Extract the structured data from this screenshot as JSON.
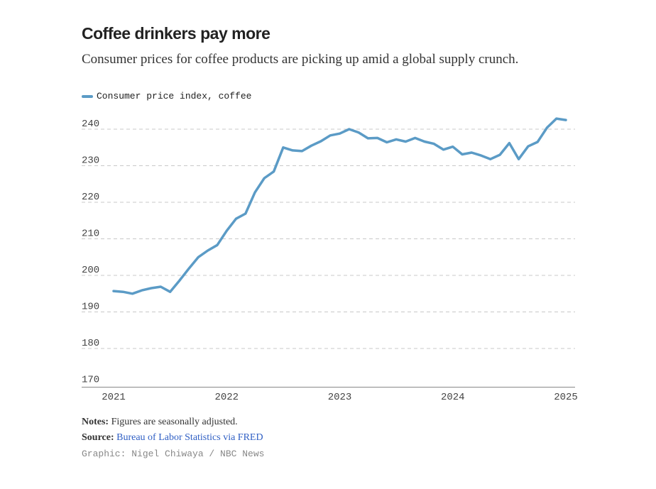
{
  "chart_data": {
    "type": "line",
    "title": "Coffee drinkers pay more",
    "subtitle": "Consumer prices for coffee products are picking up amid a global supply crunch.",
    "series": [
      {
        "name": "Consumer price index, coffee",
        "color": "#5b9bc6",
        "x": [
          "2021-01",
          "2021-02",
          "2021-03",
          "2021-04",
          "2021-05",
          "2021-06",
          "2021-07",
          "2021-08",
          "2021-09",
          "2021-10",
          "2021-11",
          "2021-12",
          "2022-01",
          "2022-02",
          "2022-03",
          "2022-04",
          "2022-05",
          "2022-06",
          "2022-07",
          "2022-08",
          "2022-09",
          "2022-10",
          "2022-11",
          "2022-12",
          "2023-01",
          "2023-02",
          "2023-03",
          "2023-04",
          "2023-05",
          "2023-06",
          "2023-07",
          "2023-08",
          "2023-09",
          "2023-10",
          "2023-11",
          "2023-12",
          "2024-01",
          "2024-02",
          "2024-03",
          "2024-04",
          "2024-05",
          "2024-06",
          "2024-07",
          "2024-08",
          "2024-09",
          "2024-10",
          "2024-11",
          "2024-12",
          "2025-01"
        ],
        "values": [
          195.7,
          195.5,
          195.0,
          195.9,
          196.5,
          196.9,
          195.5,
          198.6,
          201.9,
          205.0,
          206.8,
          208.3,
          212.2,
          215.5,
          216.9,
          222.7,
          226.6,
          228.4,
          235.0,
          234.2,
          234.0,
          235.5,
          236.7,
          238.3,
          238.8,
          240.0,
          239.1,
          237.5,
          237.6,
          236.4,
          237.2,
          236.6,
          237.6,
          236.6,
          236.0,
          234.4,
          235.2,
          233.1,
          233.6,
          232.8,
          231.8,
          233.0,
          236.2,
          231.8,
          235.3,
          236.5,
          240.4,
          242.9,
          242.5
        ]
      }
    ],
    "x_ticks": [
      "2021",
      "2022",
      "2023",
      "2024",
      "2025"
    ],
    "y_ticks": [
      "170",
      "180",
      "190",
      "200",
      "210",
      "220",
      "230",
      "240"
    ],
    "ylim": [
      170,
      245
    ],
    "grid": "horizontal dashed",
    "legend": "top-left"
  },
  "notes_label": "Notes:",
  "notes_text": " Figures are seasonally adjusted.",
  "source_label": "Source:",
  "source_link": "Bureau of Labor Statistics via FRED",
  "credit": "Graphic: Nigel Chiwaya / NBC News"
}
